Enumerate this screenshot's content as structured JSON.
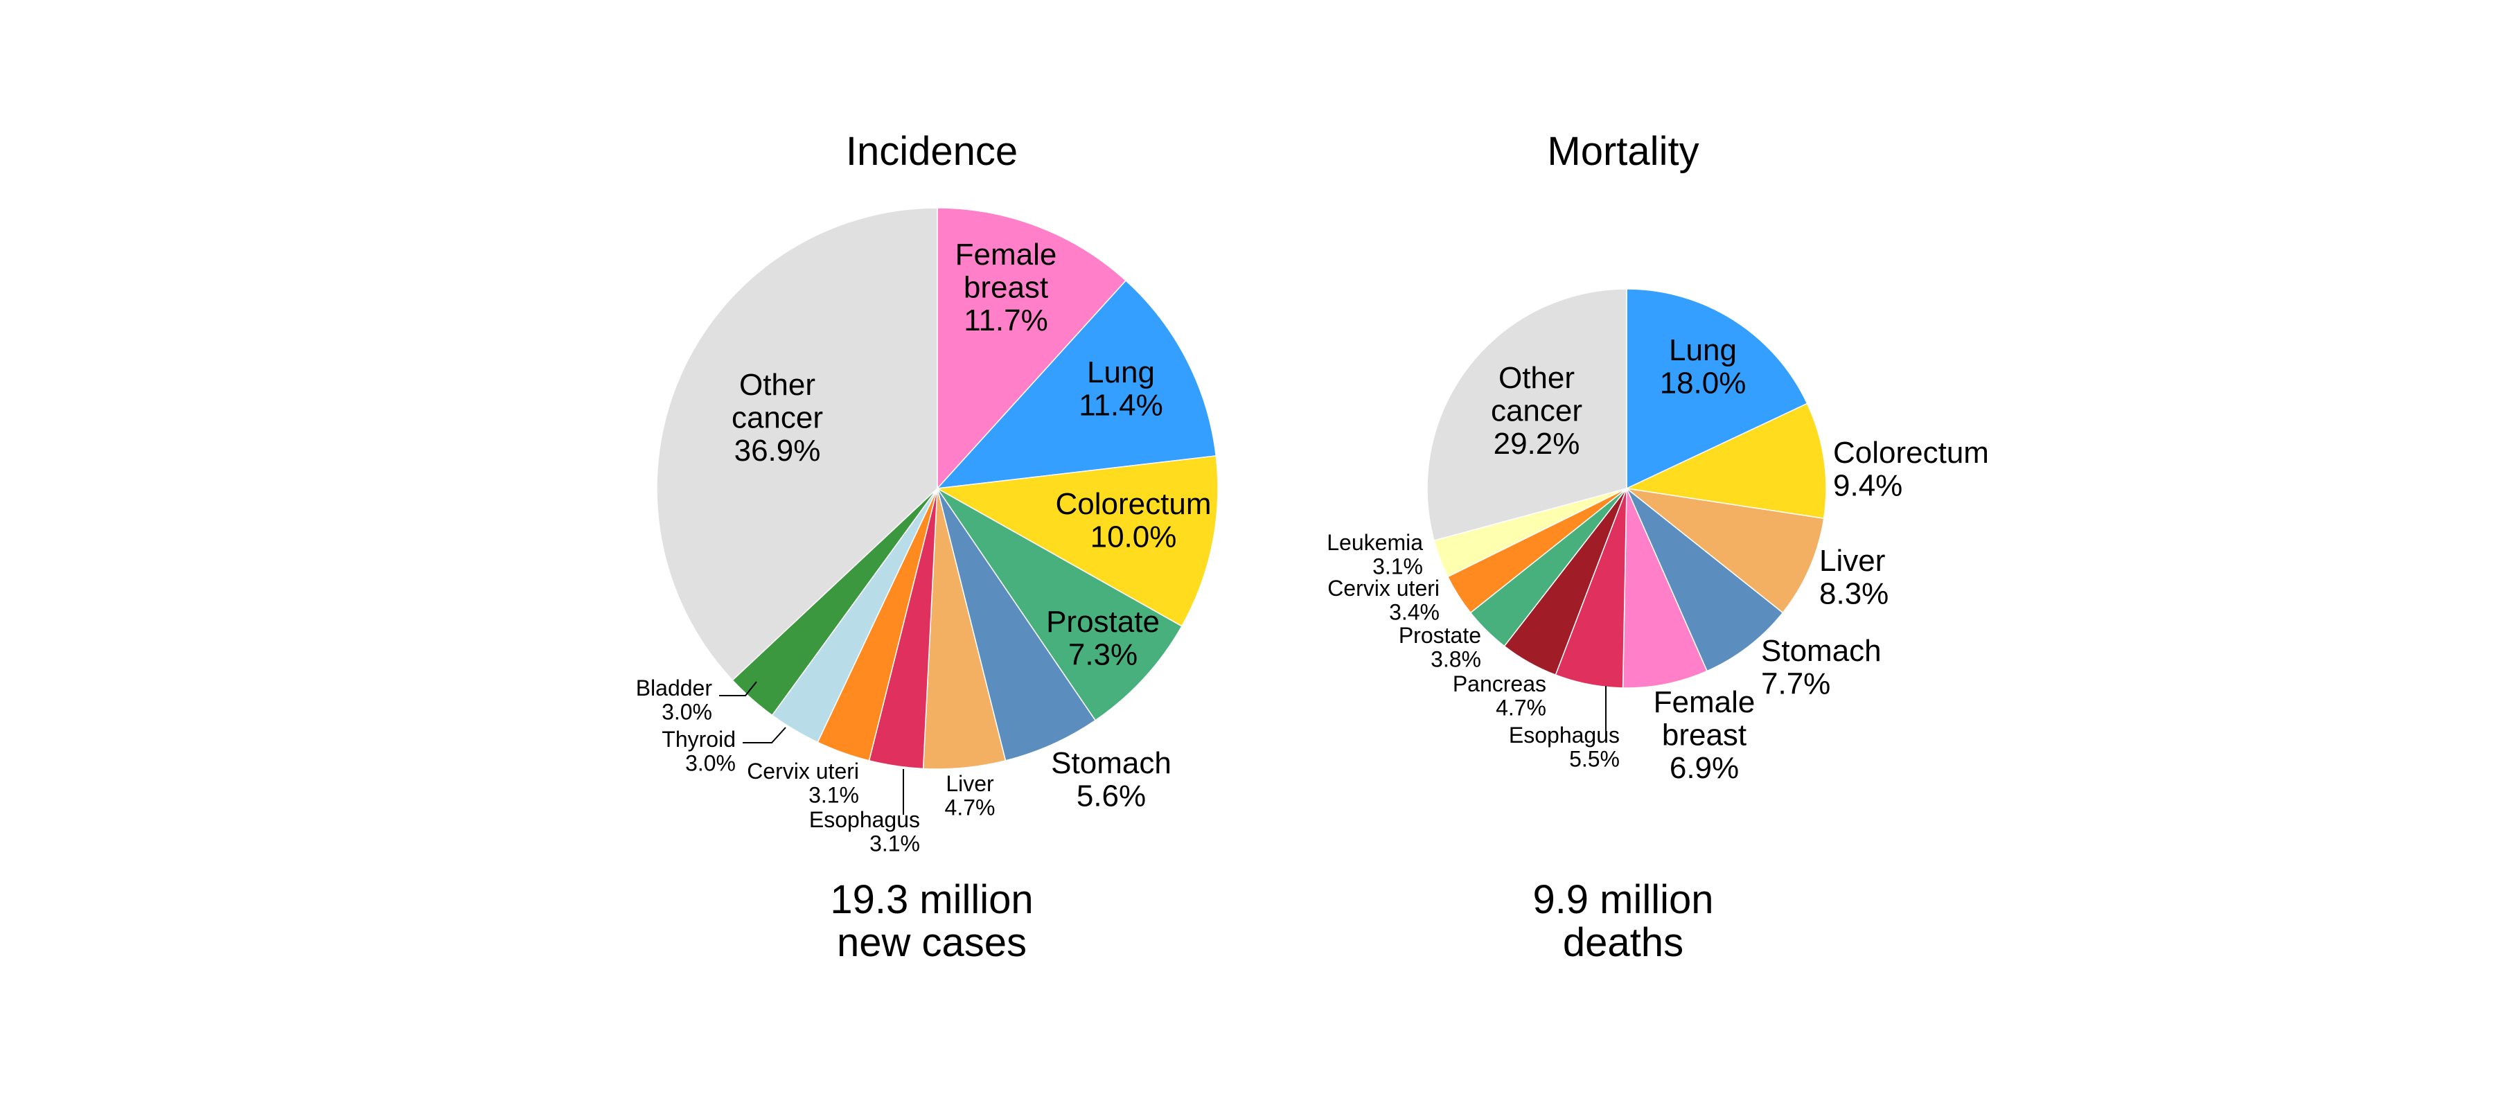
{
  "colors": {
    "female_breast": "#ff7fc8",
    "lung": "#359fff",
    "colorectum": "#ffdc1d",
    "prostate": "#48b07c",
    "stomach": "#5b8ebf",
    "liver": "#f4b062",
    "esophagus": "#e0305d",
    "cervix_uteri": "#ff8a1f",
    "thyroid": "#b8dde9",
    "bladder": "#3b983e",
    "leukemia": "#ffffb0",
    "pancreas": "#a01d27",
    "other": "#e0e0e0"
  },
  "chart_data": [
    {
      "type": "pie",
      "title": "Incidence",
      "total_line1": "19.3 million",
      "total_line2": "new cases",
      "slices": [
        {
          "key": "female_breast",
          "label": [
            "Female",
            "breast"
          ],
          "percent_text": "11.7%",
          "value": 11.7
        },
        {
          "key": "lung",
          "label": [
            "Lung"
          ],
          "percent_text": "11.4%",
          "value": 11.4
        },
        {
          "key": "colorectum",
          "label": [
            "Colorectum"
          ],
          "percent_text": "10.0%",
          "value": 10.0
        },
        {
          "key": "prostate",
          "label": [
            "Prostate"
          ],
          "percent_text": "7.3%",
          "value": 7.3
        },
        {
          "key": "stomach",
          "label": [
            "Stomach"
          ],
          "percent_text": "5.6%",
          "value": 5.6
        },
        {
          "key": "liver",
          "label": [
            "Liver"
          ],
          "percent_text": "4.7%",
          "value": 4.7
        },
        {
          "key": "esophagus",
          "label": [
            "Esophagus"
          ],
          "percent_text": "3.1%",
          "value": 3.1
        },
        {
          "key": "cervix_uteri",
          "label": [
            "Cervix uteri"
          ],
          "percent_text": "3.1%",
          "value": 3.1
        },
        {
          "key": "thyroid",
          "label": [
            "Thyroid"
          ],
          "percent_text": "3.0%",
          "value": 3.0
        },
        {
          "key": "bladder",
          "label": [
            "Bladder"
          ],
          "percent_text": "3.0%",
          "value": 3.0
        },
        {
          "key": "other",
          "label": [
            "Other",
            "cancer"
          ],
          "percent_text": "36.9%",
          "value": 36.9
        }
      ]
    },
    {
      "type": "pie",
      "title": "Mortality",
      "total_line1": "9.9 million",
      "total_line2": "deaths",
      "slices": [
        {
          "key": "lung",
          "label": [
            "Lung"
          ],
          "percent_text": "18.0%",
          "value": 18.0
        },
        {
          "key": "colorectum",
          "label": [
            "Colorectum"
          ],
          "percent_text": "9.4%",
          "value": 9.4
        },
        {
          "key": "liver",
          "label": [
            "Liver"
          ],
          "percent_text": "8.3%",
          "value": 8.3
        },
        {
          "key": "stomach",
          "label": [
            "Stomach"
          ],
          "percent_text": "7.7%",
          "value": 7.7
        },
        {
          "key": "female_breast",
          "label": [
            "Female",
            "breast"
          ],
          "percent_text": "6.9%",
          "value": 6.9
        },
        {
          "key": "esophagus",
          "label": [
            "Esophagus"
          ],
          "percent_text": "5.5%",
          "value": 5.5
        },
        {
          "key": "pancreas",
          "label": [
            "Pancreas"
          ],
          "percent_text": "4.7%",
          "value": 4.7
        },
        {
          "key": "prostate",
          "label": [
            "Prostate"
          ],
          "percent_text": "3.8%",
          "value": 3.8
        },
        {
          "key": "cervix_uteri",
          "label": [
            "Cervix uteri"
          ],
          "percent_text": "3.4%",
          "value": 3.4
        },
        {
          "key": "leukemia",
          "label": [
            "Leukemia"
          ],
          "percent_text": "3.1%",
          "value": 3.1
        },
        {
          "key": "other",
          "label": [
            "Other",
            "cancer"
          ],
          "percent_text": "29.2%",
          "value": 29.2
        }
      ]
    }
  ]
}
